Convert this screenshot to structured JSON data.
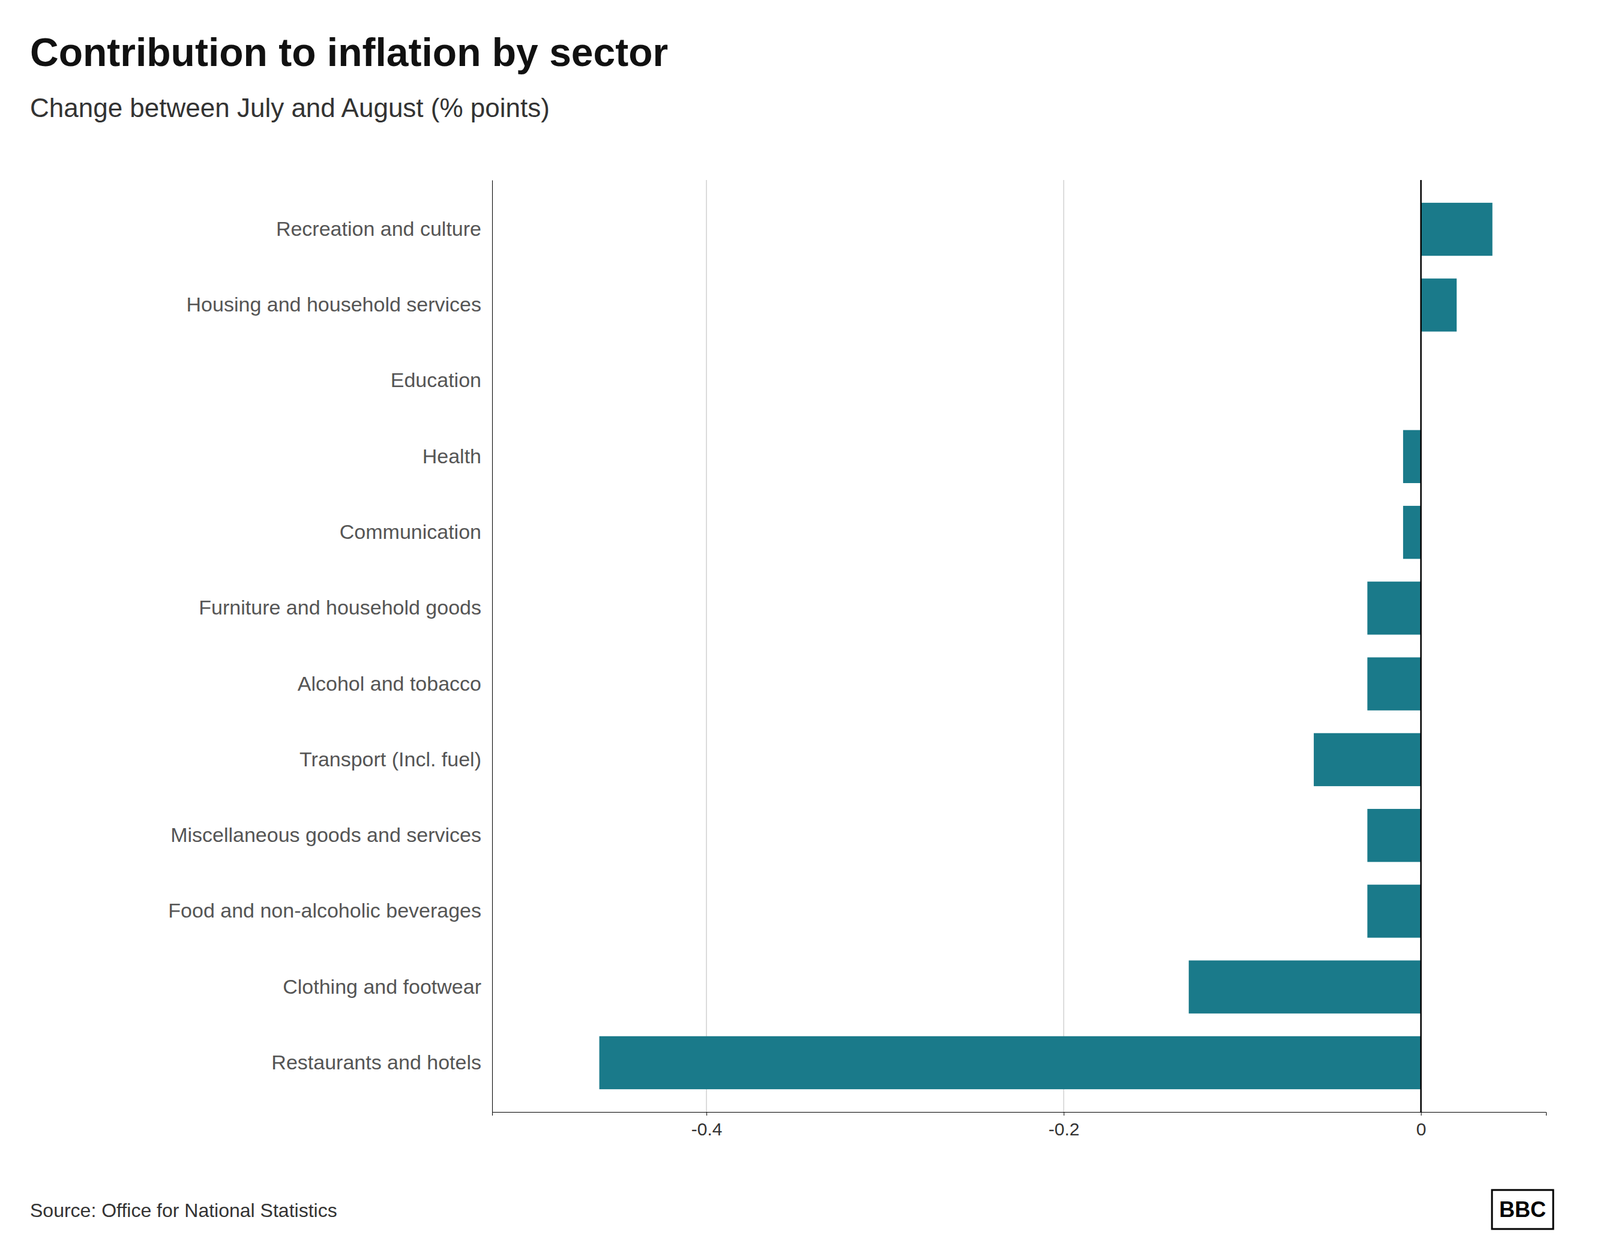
{
  "chart_data": {
    "type": "bar",
    "orientation": "horizontal",
    "title": "Contribution to inflation by sector",
    "subtitle": "Change between July and August (% points)",
    "categories": [
      "Recreation and culture",
      "Housing and household services",
      "Education",
      "Health",
      "Communication",
      "Furniture and household goods",
      "Alcohol and tobacco",
      "Transport (Incl. fuel)",
      "Miscellaneous goods and services",
      "Food and non-alcoholic beverages",
      "Clothing and footwear",
      "Restaurants and hotels"
    ],
    "values": [
      0.04,
      0.02,
      0.0,
      -0.01,
      -0.01,
      -0.03,
      -0.03,
      -0.06,
      -0.03,
      -0.03,
      -0.13,
      -0.46
    ],
    "color": "#1a7a8a",
    "xlim": [
      -0.52,
      0.07
    ],
    "xticks": [
      -0.4,
      -0.2,
      0
    ],
    "grid": true,
    "annotations": [
      "Source: Office for National Statistics",
      "BBC"
    ]
  }
}
